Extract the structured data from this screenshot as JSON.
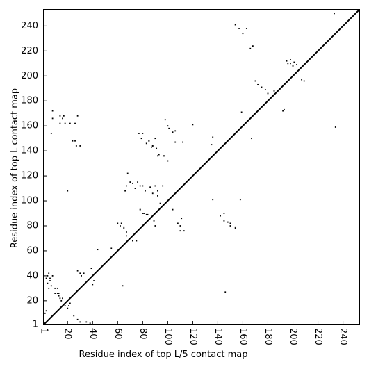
{
  "chart_data": {
    "type": "heatmap",
    "title": "",
    "xlabel": "Residue index of top L/5 contact map",
    "ylabel": "Residue index of top L contact map",
    "xlim": [
      1,
      253
    ],
    "ylim": [
      1,
      253
    ],
    "x_ticks": [
      1,
      20,
      40,
      60,
      80,
      100,
      120,
      140,
      160,
      180,
      200,
      220,
      240
    ],
    "y_ticks": [
      1,
      20,
      40,
      60,
      80,
      100,
      120,
      140,
      160,
      180,
      200,
      220,
      240
    ],
    "diagonal": true,
    "grid": false,
    "legend": "none",
    "colors": {
      "contact": "#000000",
      "diagonal": "#000000",
      "background": "#ffffff"
    },
    "upper_contacts_top_L5": [
      [
        2,
        10
      ],
      [
        3,
        12
      ],
      [
        4,
        40
      ],
      [
        5,
        42
      ],
      [
        6,
        38
      ],
      [
        7,
        154
      ],
      [
        8,
        166
      ],
      [
        8,
        172
      ],
      [
        10,
        26
      ],
      [
        12,
        30
      ],
      [
        13,
        24
      ],
      [
        13,
        26
      ],
      [
        14,
        162
      ],
      [
        14,
        168
      ],
      [
        15,
        20
      ],
      [
        16,
        22
      ],
      [
        16,
        166
      ],
      [
        17,
        168
      ],
      [
        18,
        162
      ],
      [
        20,
        108
      ],
      [
        21,
        16
      ],
      [
        22,
        18
      ],
      [
        22,
        162
      ],
      [
        24,
        148
      ],
      [
        26,
        162
      ],
      [
        26,
        148
      ],
      [
        27,
        144
      ],
      [
        28,
        168
      ],
      [
        28,
        44
      ],
      [
        30,
        42
      ],
      [
        30,
        144
      ],
      [
        31,
        40
      ],
      [
        33,
        42
      ],
      [
        35,
        3
      ],
      [
        39,
        46
      ],
      [
        44,
        61
      ],
      [
        60,
        82
      ],
      [
        62,
        80
      ],
      [
        65,
        78
      ],
      [
        67,
        72
      ],
      [
        72,
        68
      ],
      [
        78,
        93
      ],
      [
        80,
        90
      ],
      [
        83,
        89
      ],
      [
        85,
        148
      ],
      [
        88,
        144
      ],
      [
        90,
        150
      ],
      [
        93,
        137
      ],
      [
        97,
        136
      ],
      [
        100,
        132
      ],
      [
        104,
        93
      ],
      [
        106,
        156
      ],
      [
        108,
        82
      ],
      [
        110,
        76
      ],
      [
        112,
        147
      ],
      [
        136,
        151
      ],
      [
        142,
        88
      ],
      [
        145,
        84
      ],
      [
        150,
        82
      ],
      [
        154,
        79
      ],
      [
        154,
        241
      ],
      [
        157,
        238
      ],
      [
        160,
        234
      ],
      [
        163,
        238
      ],
      [
        166,
        222
      ],
      [
        168,
        224
      ],
      [
        170,
        196
      ],
      [
        172,
        193
      ],
      [
        175,
        191
      ],
      [
        178,
        189
      ],
      [
        180,
        186
      ],
      [
        185,
        188
      ],
      [
        192,
        172
      ],
      [
        195,
        212
      ],
      [
        198,
        210
      ],
      [
        200,
        208
      ],
      [
        203,
        209
      ],
      [
        207,
        197
      ],
      [
        209,
        196
      ],
      [
        233,
        250
      ]
    ],
    "lower_contacts_top_L": [
      [
        3,
        38
      ],
      [
        4,
        34
      ],
      [
        5,
        30
      ],
      [
        6,
        36
      ],
      [
        7,
        32
      ],
      [
        8,
        40
      ],
      [
        10,
        30
      ],
      [
        12,
        26
      ],
      [
        14,
        22
      ],
      [
        18,
        16
      ],
      [
        20,
        14
      ],
      [
        25,
        8
      ],
      [
        28,
        5
      ],
      [
        30,
        3
      ],
      [
        38,
        2
      ],
      [
        40,
        33
      ],
      [
        41,
        36
      ],
      [
        55,
        62
      ],
      [
        63,
        82
      ],
      [
        65,
        79
      ],
      [
        67,
        75
      ],
      [
        66,
        108
      ],
      [
        67,
        112
      ],
      [
        68,
        122
      ],
      [
        70,
        115
      ],
      [
        72,
        114
      ],
      [
        74,
        110
      ],
      [
        75,
        68
      ],
      [
        76,
        115
      ],
      [
        77,
        154
      ],
      [
        78,
        93
      ],
      [
        78,
        112
      ],
      [
        79,
        150
      ],
      [
        80,
        112
      ],
      [
        80,
        154
      ],
      [
        81,
        90
      ],
      [
        82,
        108
      ],
      [
        83,
        146
      ],
      [
        84,
        89
      ],
      [
        85,
        148
      ],
      [
        86,
        111
      ],
      [
        87,
        143
      ],
      [
        88,
        144
      ],
      [
        88,
        106
      ],
      [
        89,
        84
      ],
      [
        90,
        80
      ],
      [
        90,
        112
      ],
      [
        91,
        142
      ],
      [
        92,
        104
      ],
      [
        92,
        108
      ],
      [
        92,
        136
      ],
      [
        94,
        98
      ],
      [
        96,
        112
      ],
      [
        97,
        136
      ],
      [
        98,
        165
      ],
      [
        100,
        160
      ],
      [
        101,
        158
      ],
      [
        104,
        155
      ],
      [
        106,
        147
      ],
      [
        108,
        82
      ],
      [
        110,
        80
      ],
      [
        111,
        86
      ],
      [
        113,
        76
      ],
      [
        120,
        161
      ],
      [
        135,
        145
      ],
      [
        136,
        101
      ],
      [
        145,
        90
      ],
      [
        148,
        83
      ],
      [
        150,
        80
      ],
      [
        154,
        78
      ],
      [
        158,
        101
      ],
      [
        159,
        171
      ],
      [
        146,
        27
      ],
      [
        167,
        150
      ],
      [
        193,
        173
      ],
      [
        196,
        210
      ],
      [
        198,
        213
      ],
      [
        201,
        211
      ],
      [
        234,
        159
      ],
      [
        64,
        32
      ]
    ],
    "annotations": []
  }
}
